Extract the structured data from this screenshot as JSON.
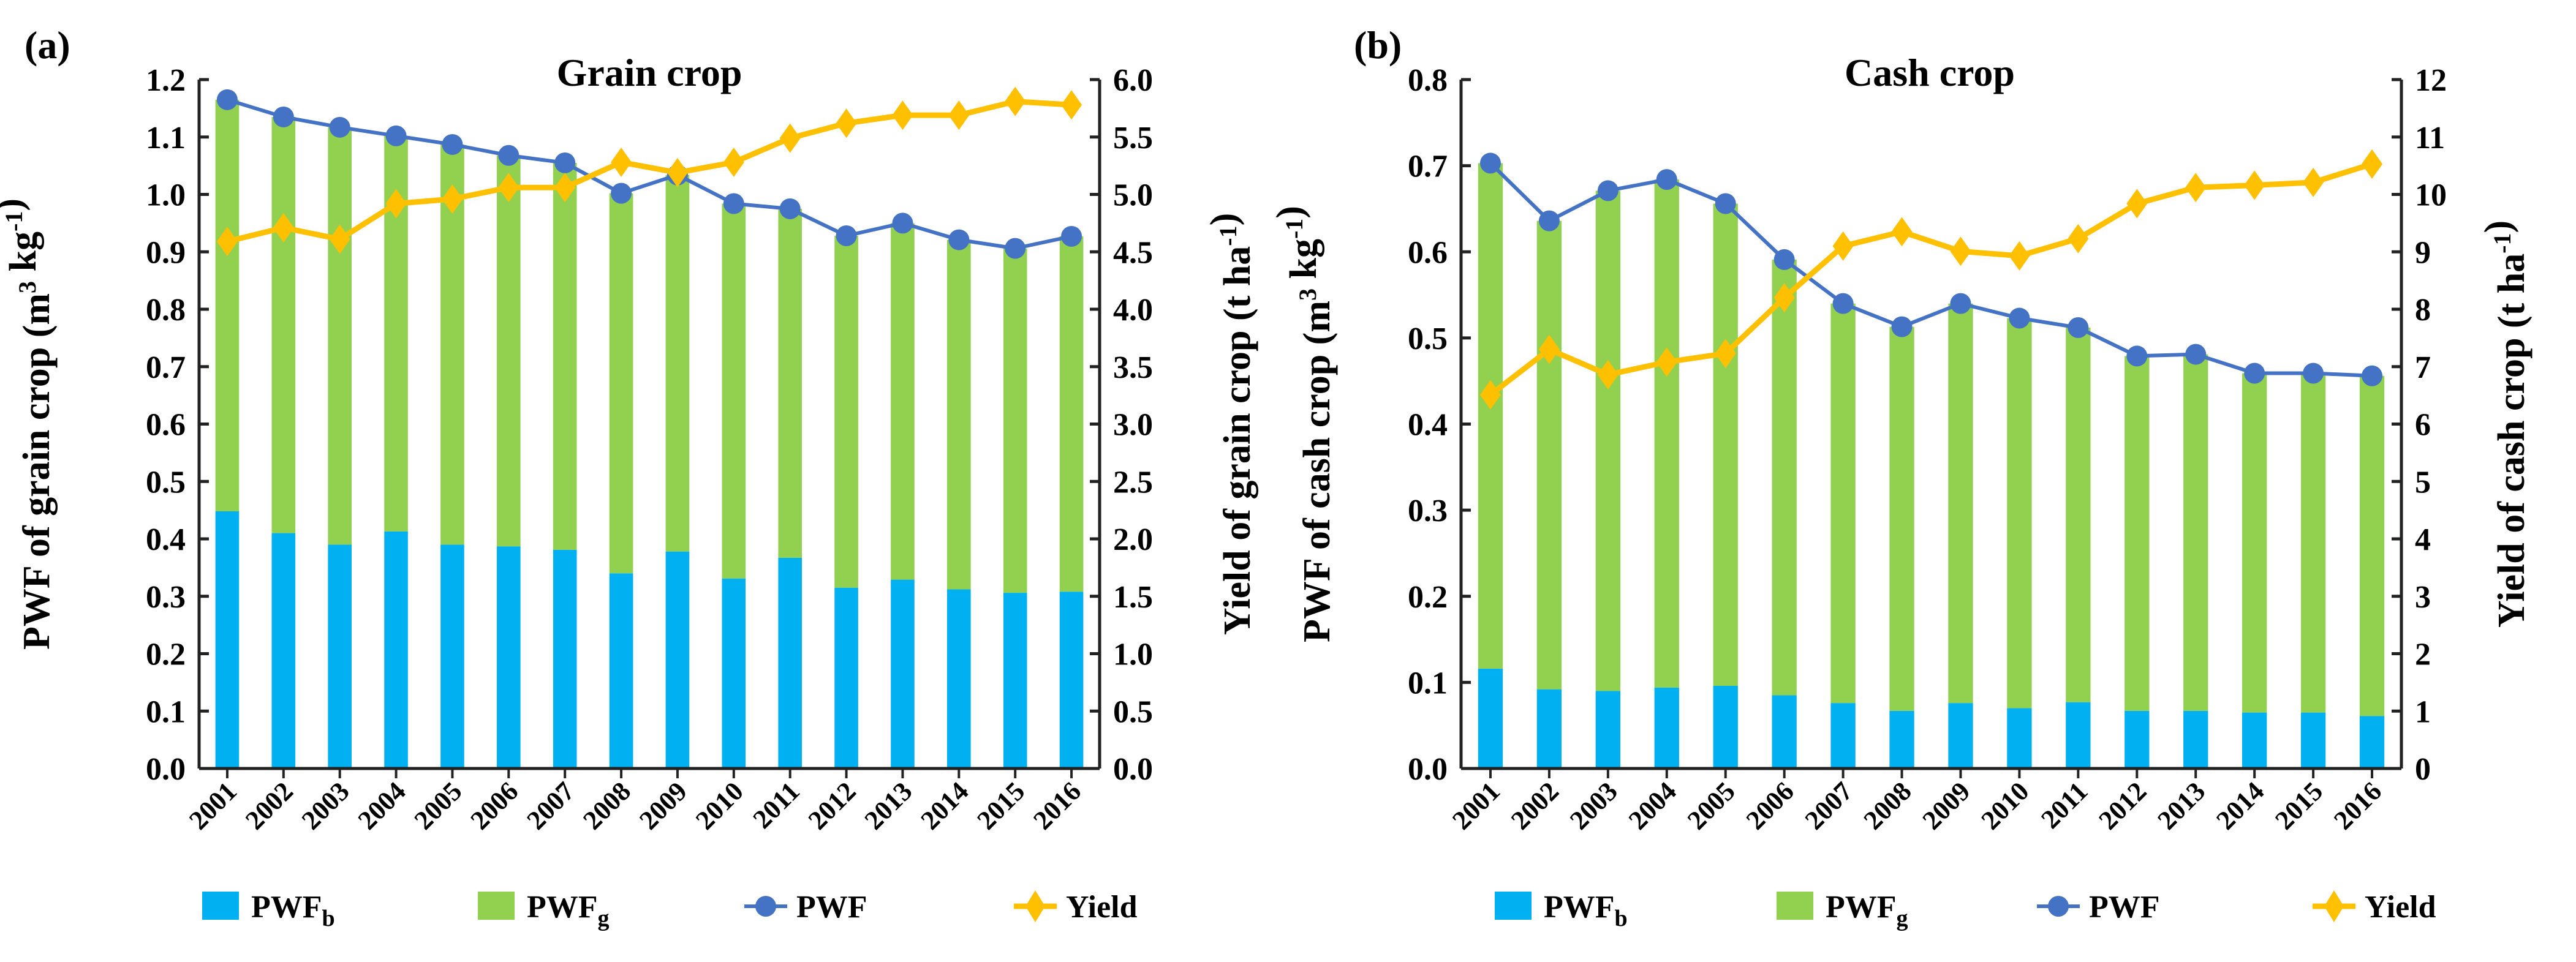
{
  "chart_data": [
    {
      "panel_label": "(a)",
      "type": "bar",
      "title": "Grain crop",
      "categories": [
        "2001",
        "2002",
        "2003",
        "2004",
        "2005",
        "2006",
        "2007",
        "2008",
        "2009",
        "2010",
        "2011",
        "2012",
        "2013",
        "2014",
        "2015",
        "2016"
      ],
      "ylabel": "PWF of grain crop (m³ kg⁻¹)",
      "ylabel_parts": {
        "main": "PWF of grain crop (m",
        "sup1": "3",
        "mid": " kg",
        "sup2": "-1",
        "end": ")"
      },
      "y2label": "Yield of grain crop (t ha⁻¹)",
      "y2label_parts": {
        "main": "Yield of grain crop (t ha",
        "sup": "-1",
        "end": ")"
      },
      "ylim": [
        0,
        1.2
      ],
      "ytick_step": 0.1,
      "ytick_decimals": 1,
      "y2lim": [
        0,
        6.0
      ],
      "y2tick_step": 0.5,
      "y2tick_decimals": 1,
      "series": [
        {
          "name": "PWFb",
          "kind": "stacked-bar",
          "axis": "left",
          "color": "#00B0F0",
          "values": [
            0.448,
            0.41,
            0.39,
            0.413,
            0.39,
            0.387,
            0.381,
            0.34,
            0.378,
            0.331,
            0.367,
            0.315,
            0.329,
            0.312,
            0.306,
            0.308
          ]
        },
        {
          "name": "PWFg",
          "kind": "stacked-bar",
          "axis": "left",
          "color": "#92D050",
          "values": [
            0.717,
            0.725,
            0.727,
            0.689,
            0.697,
            0.681,
            0.674,
            0.662,
            0.656,
            0.653,
            0.608,
            0.613,
            0.621,
            0.609,
            0.6,
            0.619
          ]
        },
        {
          "name": "PWF",
          "kind": "line",
          "marker": "circle",
          "axis": "left",
          "color": "#4472C4",
          "values": [
            1.165,
            1.135,
            1.117,
            1.102,
            1.087,
            1.068,
            1.055,
            1.002,
            1.034,
            0.984,
            0.975,
            0.928,
            0.95,
            0.921,
            0.906,
            0.927
          ]
        },
        {
          "name": "Yield",
          "kind": "line",
          "marker": "diamond",
          "axis": "right",
          "color": "#FFC000",
          "values": [
            4.59,
            4.71,
            4.61,
            4.92,
            4.96,
            5.06,
            5.06,
            5.28,
            5.19,
            5.28,
            5.49,
            5.62,
            5.69,
            5.69,
            5.81,
            5.78
          ]
        }
      ],
      "legend": [
        {
          "label": "PWF",
          "sub": "b",
          "symbol": "square",
          "color": "#00B0F0"
        },
        {
          "label": "PWF",
          "sub": "g",
          "symbol": "square",
          "color": "#92D050"
        },
        {
          "label": "PWF",
          "sub": "",
          "symbol": "line-circle",
          "color": "#4472C4"
        },
        {
          "label": "Yield",
          "sub": "",
          "symbol": "line-diamond",
          "color": "#FFC000"
        }
      ],
      "legend_position": "bottom",
      "grid": false
    },
    {
      "panel_label": "(b)",
      "type": "bar",
      "title": "Cash crop",
      "categories": [
        "2001",
        "2002",
        "2003",
        "2004",
        "2005",
        "2006",
        "2007",
        "2008",
        "2009",
        "2010",
        "2011",
        "2012",
        "2013",
        "2014",
        "2015",
        "2016"
      ],
      "ylabel": "PWF of cash crop (m³ kg⁻¹)",
      "ylabel_parts": {
        "main": "PWF of cash crop (m",
        "sup1": "3",
        "mid": " kg",
        "sup2": "-1",
        "end": ")"
      },
      "y2label": "Yield of cash crop (t ha⁻¹)",
      "y2label_parts": {
        "main": "Yield of cash crop (t ha",
        "sup": "-1",
        "end": ")"
      },
      "ylim": [
        0,
        0.8
      ],
      "ytick_step": 0.1,
      "ytick_decimals": 1,
      "y2lim": [
        0,
        12
      ],
      "y2tick_step": 1,
      "y2tick_decimals": 0,
      "series": [
        {
          "name": "PWFb",
          "kind": "stacked-bar",
          "axis": "left",
          "color": "#00B0F0",
          "values": [
            0.116,
            0.092,
            0.09,
            0.094,
            0.096,
            0.085,
            0.076,
            0.067,
            0.076,
            0.07,
            0.077,
            0.067,
            0.067,
            0.065,
            0.065,
            0.061
          ]
        },
        {
          "name": "PWFg",
          "kind": "stacked-bar",
          "axis": "left",
          "color": "#92D050",
          "values": [
            0.587,
            0.544,
            0.581,
            0.59,
            0.56,
            0.506,
            0.464,
            0.446,
            0.464,
            0.453,
            0.435,
            0.412,
            0.414,
            0.394,
            0.394,
            0.395
          ]
        },
        {
          "name": "PWF",
          "kind": "line",
          "marker": "circle",
          "axis": "left",
          "color": "#4472C4",
          "values": [
            0.703,
            0.636,
            0.671,
            0.684,
            0.656,
            0.591,
            0.54,
            0.513,
            0.54,
            0.523,
            0.512,
            0.479,
            0.481,
            0.459,
            0.459,
            0.456
          ]
        },
        {
          "name": "Yield",
          "kind": "line",
          "marker": "diamond",
          "axis": "right",
          "color": "#FFC000",
          "values": [
            6.51,
            7.3,
            6.86,
            7.08,
            7.23,
            8.2,
            9.1,
            9.35,
            9.01,
            8.93,
            9.23,
            9.84,
            10.12,
            10.16,
            10.21,
            10.53
          ]
        }
      ],
      "legend": [
        {
          "label": "PWF",
          "sub": "b",
          "symbol": "square",
          "color": "#00B0F0"
        },
        {
          "label": "PWF",
          "sub": "g",
          "symbol": "square",
          "color": "#92D050"
        },
        {
          "label": "PWF",
          "sub": "",
          "symbol": "line-circle",
          "color": "#4472C4"
        },
        {
          "label": "Yield",
          "sub": "",
          "symbol": "line-diamond",
          "color": "#FFC000"
        }
      ],
      "legend_position": "bottom",
      "grid": false
    }
  ]
}
